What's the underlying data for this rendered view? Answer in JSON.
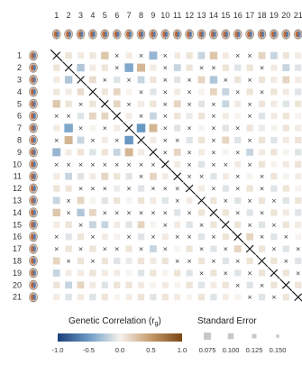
{
  "chart_data": {
    "type": "heatmap",
    "x_tick_labels": [
      "1",
      "2",
      "3",
      "4",
      "5",
      "6",
      "7",
      "8",
      "9",
      "10",
      "11",
      "12",
      "13",
      "14",
      "15",
      "16",
      "17",
      "18",
      "19",
      "20",
      "21"
    ],
    "y_tick_labels": [
      "1",
      "2",
      "3",
      "4",
      "5",
      "6",
      "7",
      "8",
      "9",
      "10",
      "11",
      "12",
      "13",
      "14",
      "15",
      "16",
      "17",
      "18",
      "19",
      "20",
      "21"
    ],
    "row_icon": "brain-icon",
    "diagonal_marker": "cross",
    "nonsignificant_marker": "×",
    "correlation_matrix": [
      [
        1.0,
        0.1,
        0.05,
        0.08,
        0.3,
        -0.1,
        0.05,
        0.1,
        -0.4,
        0.0,
        0.05,
        0.1,
        -0.2,
        0.3,
        0.05,
        -0.1,
        0.0,
        0.2,
        -0.2,
        0.1,
        0.05
      ],
      [
        0.1,
        1.0,
        -0.3,
        0.05,
        0.1,
        0.0,
        -0.5,
        0.4,
        0.05,
        0.1,
        -0.2,
        0.1,
        0.0,
        0.05,
        0.1,
        -0.1,
        0.1,
        0.2,
        0.05,
        -0.2,
        -0.1
      ],
      [
        0.05,
        -0.3,
        1.0,
        0.15,
        0.3,
        -0.1,
        0.05,
        -0.2,
        0.1,
        0.05,
        -0.1,
        0.0,
        0.2,
        -0.3,
        0.1,
        0.1,
        -0.1,
        0.1,
        0.05,
        0.2,
        0.05
      ],
      [
        0.08,
        0.05,
        0.15,
        1.0,
        0.1,
        0.2,
        0.0,
        0.05,
        -0.1,
        0.1,
        0.05,
        0.1,
        0.0,
        0.2,
        -0.2,
        0.05,
        0.1,
        -0.1,
        0.1,
        0.05,
        -0.1
      ],
      [
        0.3,
        0.1,
        0.3,
        0.1,
        1.0,
        0.2,
        -0.1,
        0.05,
        0.1,
        -0.1,
        0.2,
        0.0,
        -0.1,
        0.1,
        -0.2,
        0.05,
        0.0,
        0.1,
        0.05,
        -0.1,
        0.1
      ],
      [
        -0.1,
        0.0,
        -0.1,
        0.2,
        0.2,
        1.0,
        0.05,
        0.1,
        -0.2,
        0.05,
        0.1,
        -0.05,
        0.1,
        -0.1,
        0.05,
        0.0,
        0.1,
        -0.1,
        0.05,
        0.1,
        0.0
      ],
      [
        0.05,
        -0.5,
        0.05,
        0.0,
        -0.1,
        0.05,
        1.0,
        -0.6,
        0.4,
        0.1,
        -0.1,
        0.05,
        0.0,
        0.1,
        -0.1,
        0.05,
        0.1,
        -0.05,
        0.0,
        0.1,
        0.05
      ],
      [
        0.1,
        0.4,
        -0.2,
        0.05,
        0.05,
        0.1,
        -0.6,
        1.0,
        0.05,
        0.1,
        0.0,
        -0.1,
        0.1,
        0.05,
        0.2,
        -0.1,
        0.05,
        0.1,
        -0.1,
        0.05,
        0.1
      ],
      [
        -0.4,
        0.05,
        0.1,
        -0.1,
        0.1,
        -0.2,
        0.4,
        0.05,
        1.0,
        0.1,
        0.2,
        -0.1,
        0.05,
        0.1,
        0.0,
        0.1,
        -0.2,
        0.05,
        0.1,
        0.0,
        -0.1
      ],
      [
        0.0,
        0.1,
        0.05,
        0.1,
        -0.1,
        0.05,
        0.1,
        0.1,
        0.1,
        1.0,
        0.05,
        0.1,
        -0.1,
        0.0,
        0.1,
        0.05,
        -0.1,
        0.1,
        0.0,
        0.05,
        0.1
      ],
      [
        0.05,
        -0.2,
        -0.1,
        0.05,
        0.2,
        0.1,
        -0.1,
        0.0,
        0.2,
        0.05,
        1.0,
        0.1,
        0.0,
        -0.1,
        0.05,
        0.1,
        0.0,
        -0.05,
        0.1,
        0.0,
        0.05
      ],
      [
        0.1,
        0.1,
        0.0,
        0.1,
        0.0,
        -0.05,
        0.05,
        -0.1,
        -0.1,
        0.1,
        0.1,
        1.0,
        0.05,
        0.1,
        -0.1,
        0.0,
        0.1,
        0.05,
        -0.1,
        0.1,
        0.0
      ],
      [
        -0.2,
        0.0,
        0.2,
        0.0,
        -0.1,
        0.1,
        0.0,
        0.1,
        0.05,
        -0.1,
        0.0,
        0.05,
        1.0,
        0.1,
        0.05,
        -0.1,
        0.0,
        0.1,
        0.05,
        -0.1,
        0.1
      ],
      [
        0.3,
        0.05,
        -0.3,
        0.2,
        0.1,
        -0.1,
        0.1,
        0.05,
        0.1,
        0.0,
        -0.1,
        0.1,
        0.1,
        1.0,
        0.1,
        0.05,
        -0.1,
        0.0,
        0.1,
        0.05,
        -0.1
      ],
      [
        0.05,
        0.1,
        0.1,
        -0.2,
        -0.2,
        0.05,
        -0.1,
        0.2,
        0.0,
        0.1,
        0.05,
        -0.1,
        0.05,
        0.1,
        1.0,
        0.1,
        0.05,
        -0.1,
        0.0,
        0.1,
        0.05
      ],
      [
        -0.1,
        -0.1,
        0.1,
        0.05,
        0.05,
        0.0,
        0.05,
        -0.1,
        0.1,
        0.05,
        0.1,
        0.0,
        -0.1,
        0.05,
        0.1,
        1.0,
        0.2,
        0.05,
        -0.1,
        0.1,
        0.0
      ],
      [
        0.0,
        0.1,
        -0.1,
        0.1,
        0.0,
        0.1,
        0.1,
        0.05,
        -0.2,
        -0.1,
        0.0,
        0.1,
        0.0,
        -0.1,
        0.05,
        0.2,
        1.0,
        0.1,
        0.05,
        -0.1,
        0.1
      ],
      [
        0.2,
        0.2,
        0.1,
        -0.1,
        0.1,
        -0.1,
        -0.05,
        0.1,
        0.05,
        0.1,
        -0.05,
        0.05,
        0.1,
        0.0,
        -0.1,
        0.05,
        0.1,
        1.0,
        0.1,
        0.05,
        -0.1
      ],
      [
        -0.2,
        0.05,
        0.05,
        0.1,
        0.05,
        0.05,
        0.0,
        -0.1,
        0.1,
        0.0,
        0.1,
        -0.1,
        0.05,
        0.1,
        0.0,
        -0.1,
        0.05,
        0.1,
        1.0,
        0.1,
        0.05
      ],
      [
        0.1,
        -0.2,
        0.2,
        0.05,
        -0.1,
        0.1,
        0.1,
        0.05,
        0.0,
        0.05,
        0.0,
        0.1,
        -0.1,
        0.05,
        0.1,
        0.1,
        -0.1,
        0.05,
        0.1,
        1.0,
        0.1
      ],
      [
        0.05,
        -0.1,
        0.05,
        -0.1,
        0.1,
        0.0,
        0.05,
        0.1,
        -0.1,
        0.1,
        0.05,
        0.0,
        0.1,
        -0.1,
        0.05,
        0.0,
        0.1,
        -0.1,
        0.05,
        0.1,
        1.0
      ]
    ],
    "nonsignificant_pairs": [
      [
        0,
        5
      ],
      [
        0,
        7
      ],
      [
        0,
        9
      ],
      [
        0,
        15
      ],
      [
        0,
        16
      ],
      [
        1,
        5
      ],
      [
        1,
        9
      ],
      [
        1,
        12
      ],
      [
        1,
        13
      ],
      [
        1,
        17
      ],
      [
        2,
        4
      ],
      [
        2,
        6
      ],
      [
        2,
        9
      ],
      [
        2,
        11
      ],
      [
        2,
        14
      ],
      [
        2,
        16
      ],
      [
        3,
        7
      ],
      [
        3,
        9
      ],
      [
        3,
        11
      ],
      [
        3,
        15
      ],
      [
        3,
        17
      ],
      [
        4,
        6
      ],
      [
        4,
        9
      ],
      [
        4,
        11
      ],
      [
        4,
        13
      ],
      [
        4,
        16
      ],
      [
        5,
        7
      ],
      [
        5,
        9
      ],
      [
        5,
        13
      ],
      [
        5,
        16
      ],
      [
        6,
        9
      ],
      [
        6,
        11
      ],
      [
        6,
        13
      ],
      [
        6,
        15
      ],
      [
        7,
        9
      ],
      [
        7,
        10
      ],
      [
        7,
        13
      ],
      [
        7,
        16
      ],
      [
        8,
        9
      ],
      [
        8,
        11
      ],
      [
        8,
        13
      ],
      [
        8,
        15
      ],
      [
        9,
        11
      ],
      [
        9,
        13
      ],
      [
        9,
        14
      ],
      [
        9,
        16
      ],
      [
        10,
        11
      ],
      [
        10,
        12
      ],
      [
        10,
        15
      ],
      [
        10,
        17
      ],
      [
        11,
        13
      ],
      [
        11,
        15
      ],
      [
        11,
        17
      ],
      [
        12,
        14
      ],
      [
        12,
        16
      ],
      [
        12,
        18
      ],
      [
        13,
        15
      ],
      [
        13,
        17
      ],
      [
        14,
        16
      ],
      [
        14,
        18
      ],
      [
        15,
        17
      ],
      [
        15,
        19
      ],
      [
        16,
        18
      ],
      [
        16,
        20
      ],
      [
        17,
        19
      ],
      [
        18,
        20
      ]
    ],
    "legend": {
      "correlation_title": "Genetic Correlation (r",
      "correlation_title_subscript": "g",
      "correlation_title_close": ")",
      "correlation_range": [
        -1.0,
        1.0
      ],
      "correlation_ticks": [
        "-1.0",
        "-0.5",
        "0.0",
        "0.5",
        "1.0"
      ],
      "correlation_colors": [
        "#1a3f7a",
        "#6b9ac4",
        "#f7f3ee",
        "#c49a6b",
        "#7a4513"
      ],
      "se_title": "Standard Error",
      "se_ticks": [
        "0.075",
        "0.100",
        "0.125",
        "0.150"
      ],
      "se_color": "#c8c8c8"
    }
  }
}
